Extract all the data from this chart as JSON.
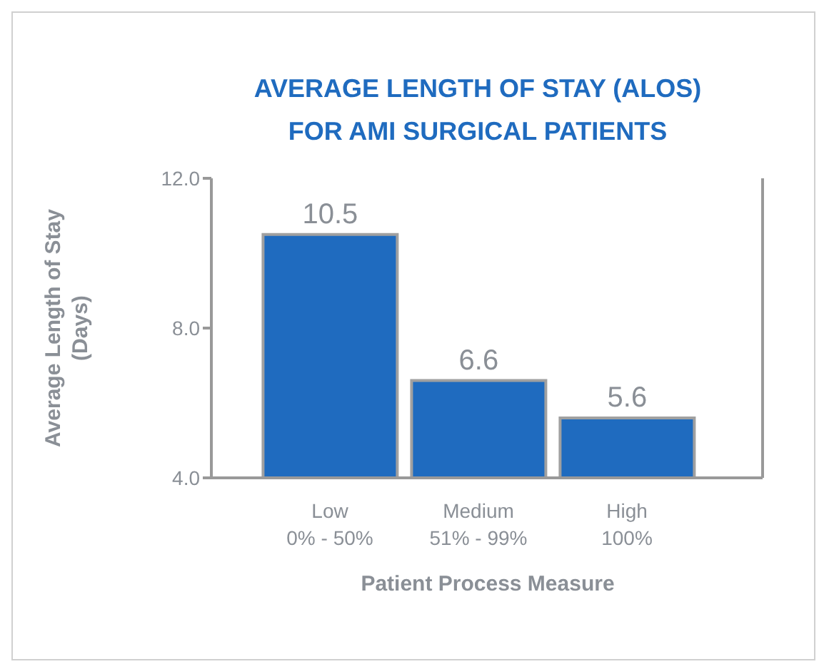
{
  "chart_data": {
    "type": "bar",
    "title": "AVERAGE LENGTH OF STAY (ALOS)\nFOR AMI SURGICAL PATIENTS",
    "xlabel": "Patient Process Measure",
    "ylabel": "Average Length of Stay\n(Days)",
    "categories": [
      "Low\n0% - 50%",
      "Medium\n51% - 99%",
      "High\n100%"
    ],
    "values": [
      10.5,
      6.6,
      5.6
    ],
    "color": "#1f6bbf",
    "ylim": [
      4,
      12
    ],
    "yticks": [
      {
        "value": 4,
        "label": "4.0"
      },
      {
        "value": 8,
        "label": "8.0"
      },
      {
        "value": 12,
        "label": "12.0"
      }
    ],
    "data_labels": true
  }
}
